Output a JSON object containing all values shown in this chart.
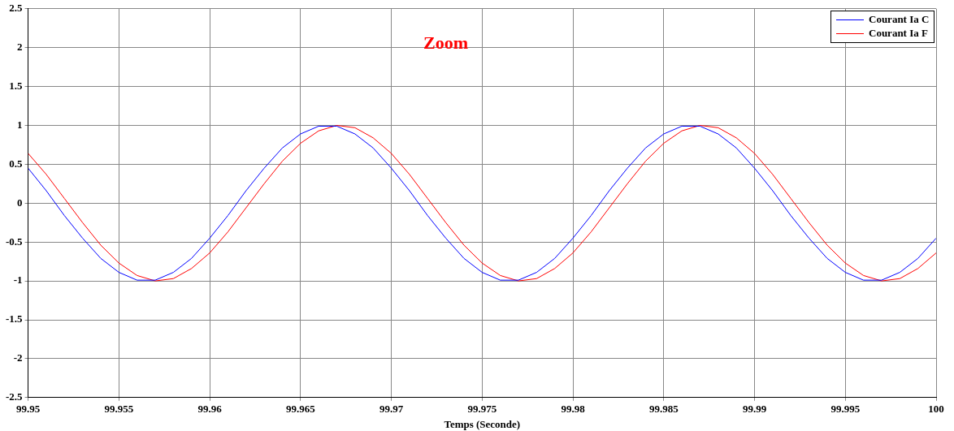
{
  "chart_data": {
    "type": "line",
    "xlabel": "Temps (Seconde)",
    "annotations": [
      "Zoom"
    ],
    "x": [
      99.95,
      99.951,
      99.952,
      99.953,
      99.954,
      99.955,
      99.956,
      99.957,
      99.958,
      99.959,
      99.96,
      99.961,
      99.962,
      99.963,
      99.964,
      99.965,
      99.966,
      99.967,
      99.968,
      99.969,
      99.97,
      99.971,
      99.972,
      99.973,
      99.974,
      99.975,
      99.976,
      99.977,
      99.978,
      99.979,
      99.98,
      99.981,
      99.982,
      99.983,
      99.984,
      99.985,
      99.986,
      99.987,
      99.988,
      99.989,
      99.99,
      99.991,
      99.992,
      99.993,
      99.994,
      99.995,
      99.996,
      99.997,
      99.998,
      99.999,
      100
    ],
    "series": [
      {
        "name": "Courant Ia C",
        "color": "#0000ff",
        "values": [
          0.45,
          0.16,
          -0.16,
          -0.45,
          -0.71,
          -0.89,
          -0.99,
          -0.99,
          -0.89,
          -0.71,
          -0.45,
          -0.16,
          0.16,
          0.45,
          0.71,
          0.89,
          0.99,
          0.99,
          0.89,
          0.71,
          0.45,
          0.16,
          -0.16,
          -0.45,
          -0.71,
          -0.89,
          -0.99,
          -0.99,
          -0.89,
          -0.71,
          -0.45,
          -0.16,
          0.16,
          0.45,
          0.71,
          0.89,
          0.99,
          0.99,
          0.89,
          0.71,
          0.45,
          0.16,
          -0.16,
          -0.45,
          -0.71,
          -0.89,
          -0.99,
          -0.99,
          -0.89,
          -0.71,
          -0.45
        ]
      },
      {
        "name": "Courant Ia F",
        "color": "#ff0000",
        "values": [
          0.64,
          0.37,
          0.06,
          -0.25,
          -0.54,
          -0.77,
          -0.93,
          -1.0,
          -0.97,
          -0.84,
          -0.64,
          -0.37,
          -0.06,
          0.25,
          0.54,
          0.77,
          0.93,
          1.0,
          0.97,
          0.84,
          0.64,
          0.37,
          0.06,
          -0.25,
          -0.54,
          -0.77,
          -0.93,
          -1.0,
          -0.97,
          -0.84,
          -0.64,
          -0.37,
          -0.06,
          0.25,
          0.54,
          0.77,
          0.93,
          1.0,
          0.97,
          0.84,
          0.64,
          0.37,
          0.06,
          -0.25,
          -0.54,
          -0.77,
          -0.93,
          -1.0,
          -0.97,
          -0.84,
          -0.64
        ]
      }
    ],
    "xlim": [
      99.95,
      100
    ],
    "xticks": [
      99.95,
      99.955,
      99.96,
      99.965,
      99.97,
      99.975,
      99.98,
      99.985,
      99.99,
      99.995,
      100
    ],
    "ylim": [
      -2.5,
      2.5
    ],
    "yticks": [
      -2.5,
      -2,
      -1.5,
      -1,
      -0.5,
      0,
      0.5,
      1,
      1.5,
      2,
      2.5
    ],
    "grid": true,
    "legend": "top right",
    "marker": "none",
    "line_style": "solid"
  }
}
